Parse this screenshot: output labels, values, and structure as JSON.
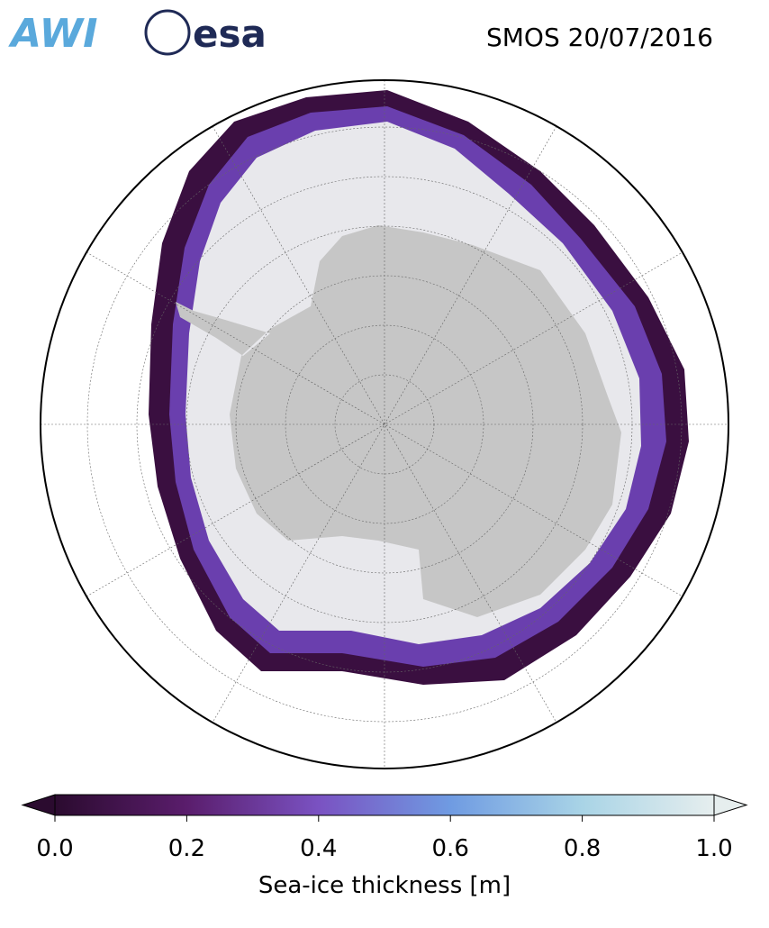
{
  "logos": {
    "awi": "AWI",
    "esa": "esa"
  },
  "title": "SMOS 20/07/2016",
  "colorbar": {
    "label": "Sea-ice thickness [m]",
    "lim": [
      0,
      1
    ],
    "ticks": [
      {
        "value": 0,
        "label": "0.0"
      },
      {
        "value": 0.2,
        "label": "0.2"
      },
      {
        "value": 0.4,
        "label": "0.4"
      },
      {
        "value": 0.6,
        "label": "0.6"
      },
      {
        "value": 0.8,
        "label": "0.8"
      },
      {
        "value": 1,
        "label": "1.0"
      }
    ],
    "colors": [
      "#2b0b2f",
      "#5a1d6c",
      "#7a52c2",
      "#6f9be2",
      "#a9d4e6",
      "#e6eeee"
    ]
  }
}
